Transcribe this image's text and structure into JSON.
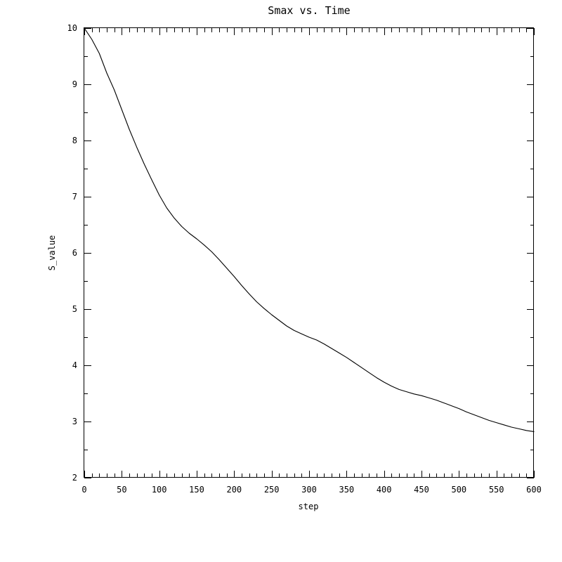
{
  "chart_data": {
    "type": "line",
    "title": "Smax vs. Time",
    "xlabel": "step",
    "ylabel": "S_value",
    "xlim": [
      0,
      600
    ],
    "ylim": [
      2,
      10
    ],
    "x_ticks": [
      0,
      50,
      100,
      150,
      200,
      250,
      300,
      350,
      400,
      450,
      500,
      550,
      600
    ],
    "x_tick_labels": [
      "0",
      "50",
      "100",
      "150",
      "200",
      "250",
      "300",
      "350",
      "400",
      "450",
      "500",
      "550",
      "600"
    ],
    "y_ticks": [
      2,
      3,
      4,
      5,
      6,
      7,
      8,
      9,
      10
    ],
    "y_tick_labels": [
      "2",
      "3",
      "4",
      "5",
      "6",
      "7",
      "8",
      "9",
      "10"
    ],
    "grid": false,
    "series": [
      {
        "x": [
          0,
          10,
          20,
          30,
          40,
          50,
          60,
          70,
          80,
          90,
          100,
          110,
          120,
          130,
          140,
          150,
          160,
          170,
          180,
          190,
          200,
          210,
          220,
          230,
          240,
          250,
          260,
          270,
          280,
          290,
          300,
          310,
          320,
          330,
          340,
          350,
          360,
          370,
          380,
          390,
          400,
          410,
          420,
          430,
          440,
          450,
          460,
          470,
          480,
          490,
          500,
          510,
          520,
          530,
          540,
          550,
          560,
          570,
          580,
          590,
          600
        ],
        "y": [
          10.0,
          9.8,
          9.55,
          9.2,
          8.9,
          8.55,
          8.2,
          7.88,
          7.58,
          7.3,
          7.03,
          6.8,
          6.62,
          6.47,
          6.35,
          6.25,
          6.14,
          6.02,
          5.88,
          5.73,
          5.58,
          5.42,
          5.27,
          5.13,
          5.01,
          4.9,
          4.8,
          4.7,
          4.62,
          4.56,
          4.5,
          4.45,
          4.38,
          4.3,
          4.22,
          4.14,
          4.05,
          3.96,
          3.87,
          3.78,
          3.7,
          3.63,
          3.57,
          3.53,
          3.49,
          3.46,
          3.42,
          3.38,
          3.33,
          3.28,
          3.23,
          3.17,
          3.12,
          3.07,
          3.02,
          2.98,
          2.94,
          2.9,
          2.87,
          2.84,
          2.82
        ]
      }
    ]
  }
}
